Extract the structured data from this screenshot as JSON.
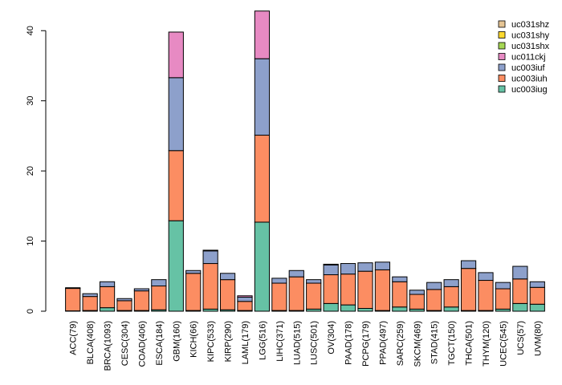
{
  "chart_data": {
    "type": "bar",
    "stacked": true,
    "title": "",
    "xlabel": "",
    "ylabel": "",
    "ylim": [
      0,
      43
    ],
    "yticks": [
      0,
      10,
      20,
      30,
      40
    ],
    "grid": false,
    "legend_position": "top-right",
    "categories": [
      "ACC(79)",
      "BLCA(408)",
      "BRCA(1093)",
      "CESC(304)",
      "COAD(406)",
      "ESCA(184)",
      "GBM(160)",
      "KICH(66)",
      "KIPC(533)",
      "KIRP(290)",
      "LAML(179)",
      "LGG(516)",
      "LIHC(371)",
      "LUAD(515)",
      "LUSC(501)",
      "OV(304)",
      "PAAD(178)",
      "PCPG(179)",
      "PPAD(497)",
      "SARC(259)",
      "SKCM(469)",
      "STAD(415)",
      "TGCT(150)",
      "THCA(501)",
      "THYM(120)",
      "UCEC(545)",
      "UCS(57)",
      "UVM(80)"
    ],
    "series": [
      {
        "name": "uc003iug",
        "color": "#66c2a5",
        "values": [
          0.05,
          0.1,
          0.5,
          0.1,
          0.1,
          0.2,
          12.9,
          0.1,
          0.3,
          0.2,
          0.1,
          12.7,
          0.1,
          0.1,
          0.3,
          1.1,
          0.9,
          0.4,
          0.1,
          0.6,
          0.3,
          0.1,
          0.6,
          0.1,
          0.1,
          0.3,
          1.1,
          1.0
        ]
      },
      {
        "name": "uc003iuh",
        "color": "#fc8d62",
        "values": [
          3.2,
          2.0,
          3.0,
          1.4,
          2.8,
          3.4,
          10.0,
          5.3,
          6.5,
          4.3,
          1.3,
          12.4,
          3.9,
          4.8,
          3.7,
          4.1,
          4.4,
          5.3,
          5.8,
          3.6,
          2.1,
          3.0,
          2.9,
          6.0,
          4.3,
          2.9,
          3.5,
          2.4
        ]
      },
      {
        "name": "uc003iuf",
        "color": "#8da0cb",
        "values": [
          0.1,
          0.4,
          0.7,
          0.3,
          0.3,
          0.9,
          10.4,
          0.4,
          1.8,
          0.9,
          0.6,
          10.9,
          0.7,
          0.9,
          0.5,
          1.4,
          1.5,
          1.2,
          1.1,
          0.7,
          0.6,
          1.0,
          1.0,
          1.1,
          1.1,
          0.9,
          1.8,
          0.8
        ]
      },
      {
        "name": "uc011ckj",
        "color": "#e78ac3",
        "values": [
          0,
          0,
          0,
          0,
          0,
          0,
          6.5,
          0,
          0.1,
          0,
          0.2,
          6.8,
          0,
          0,
          0,
          0.1,
          0,
          0,
          0,
          0,
          0,
          0,
          0,
          0,
          0,
          0,
          0,
          0
        ]
      },
      {
        "name": "uc031shx",
        "color": "#a6d854",
        "values": [
          0,
          0,
          0,
          0,
          0,
          0,
          0,
          0,
          0,
          0,
          0,
          0,
          0,
          0,
          0,
          0,
          0,
          0,
          0,
          0,
          0,
          0,
          0,
          0,
          0,
          0,
          0,
          0
        ]
      },
      {
        "name": "uc031shy",
        "color": "#ffd92f",
        "values": [
          0,
          0,
          0,
          0,
          0,
          0,
          0,
          0,
          0,
          0,
          0,
          0,
          0,
          0,
          0,
          0,
          0,
          0,
          0,
          0,
          0,
          0,
          0,
          0,
          0,
          0,
          0,
          0
        ]
      },
      {
        "name": "uc031shz",
        "color": "#e5c494",
        "values": [
          0,
          0,
          0,
          0,
          0,
          0,
          0,
          0,
          0,
          0,
          0,
          0,
          0,
          0,
          0,
          0,
          0,
          0,
          0,
          0,
          0,
          0,
          0,
          0,
          0,
          0,
          0,
          0
        ]
      }
    ],
    "legend_order": [
      "uc031shz",
      "uc031shy",
      "uc031shx",
      "uc011ckj",
      "uc003iuf",
      "uc003iuh",
      "uc003iug"
    ]
  }
}
